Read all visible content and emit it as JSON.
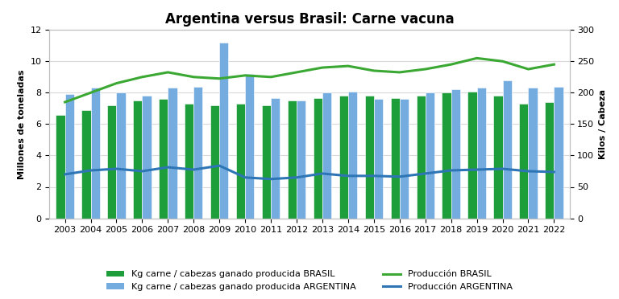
{
  "chart_data": {
    "type": "bar",
    "title": "Argentina versus Brasil: Carne vacuna",
    "y_label": "Millones de toneladas",
    "y2_label": "Kilos / Cabeza",
    "categories": [
      "2003",
      "2004",
      "2005",
      "2006",
      "2007",
      "2008",
      "2009",
      "2010",
      "2011",
      "2012",
      "2013",
      "2014",
      "2015",
      "2016",
      "2017",
      "2018",
      "2019",
      "2020",
      "2021",
      "2022"
    ],
    "ylim": [
      0,
      12
    ],
    "yticks": [
      0,
      2,
      4,
      6,
      8,
      10,
      12
    ],
    "y2lim": [
      0,
      300
    ],
    "y2ticks": [
      0,
      50,
      100,
      150,
      200,
      250,
      300
    ],
    "grid": true,
    "legend": "lower center",
    "series": [
      {
        "name": "Kg carne / cabezas ganado producida BRASIL",
        "type": "bar",
        "axis": "y2",
        "color": "#1e9e3a",
        "values": [
          165,
          172,
          180,
          187,
          190,
          182,
          180,
          183,
          180,
          187,
          192,
          195,
          195,
          192,
          195,
          200,
          202,
          195,
          182,
          185
        ]
      },
      {
        "name": "Kg carne / cabezas ganado producida ARGENTINA",
        "type": "bar",
        "axis": "y2",
        "color": "#74acdf",
        "values": [
          198,
          208,
          200,
          195,
          208,
          210,
          280,
          230,
          192,
          188,
          200,
          202,
          190,
          190,
          200,
          205,
          208,
          220,
          208,
          210
        ]
      },
      {
        "name": "Producción BRASIL",
        "type": "line",
        "color": "#3aa832",
        "values": [
          7.4,
          8.0,
          8.6,
          9.0,
          9.3,
          9.0,
          8.9,
          9.1,
          9.0,
          9.3,
          9.6,
          9.7,
          9.4,
          9.3,
          9.5,
          9.8,
          10.2,
          10.0,
          9.5,
          9.8
        ]
      },
      {
        "name": "Producción ARGENTINA",
        "type": "line",
        "color": "#2e75b6",
        "values": [
          2.8,
          3.05,
          3.15,
          3.0,
          3.25,
          3.1,
          3.35,
          2.6,
          2.5,
          2.6,
          2.85,
          2.7,
          2.7,
          2.65,
          2.85,
          3.05,
          3.1,
          3.15,
          3.0,
          2.95
        ]
      }
    ]
  }
}
